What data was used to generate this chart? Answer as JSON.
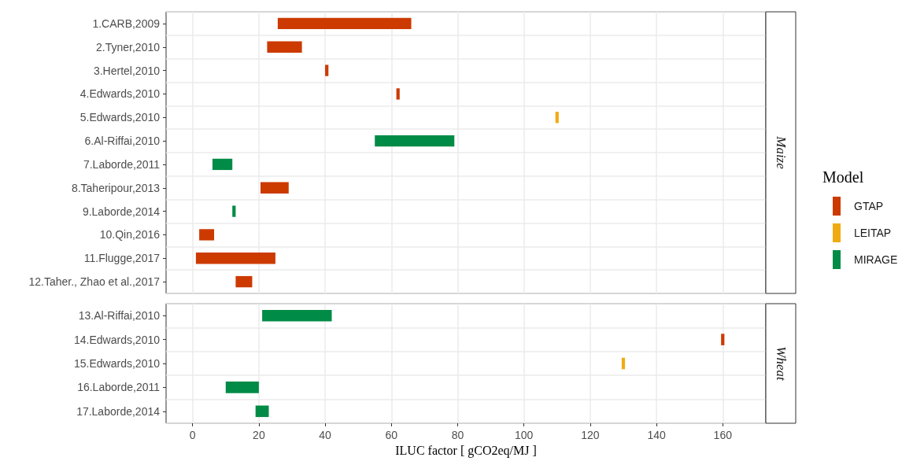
{
  "chart_data": [
    {
      "type": "bar",
      "orientation": "horizontal",
      "y2label": "Maize",
      "legend_title": "Model",
      "legend": "right",
      "grid": true,
      "tick_labels": "y",
      "categories": [
        "1.CARB,2009",
        "2.Tyner,2010",
        "3.Hertel,2010",
        "4.Edwards,2010",
        "5.Edwards,2010",
        "6.Al-Riffai,2010",
        "7.Laborde,2011",
        "8.Taheripour,2013",
        "9.Laborde,2014",
        "10.Qin,2016",
        "11.Flugge,2017",
        "12.Taher., Zhao et al.,2017"
      ],
      "xlim": [
        -8,
        173
      ],
      "xticks": [
        0,
        20,
        40,
        60,
        80,
        100,
        120,
        140,
        160
      ],
      "series": [
        {
          "name": "GTAP",
          "color": "#cc3a00",
          "base": [
            25.7,
            22.5,
            40,
            61.5,
            null,
            null,
            null,
            20.5,
            null,
            2,
            1,
            13
          ],
          "values": [
            40.3,
            10.5,
            1,
            1,
            null,
            null,
            null,
            8.5,
            null,
            4.5,
            24,
            5
          ]
        },
        {
          "name": "LEITAP",
          "color": "#f0ab12",
          "base": [
            null,
            null,
            null,
            null,
            109.5,
            null,
            null,
            null,
            null,
            null,
            null,
            null
          ],
          "values": [
            null,
            null,
            null,
            null,
            1,
            null,
            null,
            null,
            null,
            null,
            null,
            null
          ]
        },
        {
          "name": "MIRAGE",
          "color": "#008b46",
          "base": [
            null,
            null,
            null,
            null,
            null,
            55,
            6,
            null,
            12,
            null,
            null,
            null
          ],
          "values": [
            null,
            null,
            null,
            null,
            null,
            24,
            6,
            null,
            1,
            null,
            null,
            null
          ]
        }
      ]
    },
    {
      "type": "bar",
      "orientation": "horizontal",
      "y2label": "Wheat",
      "xlabel": "ILUC factor [ gCO2eq/MJ ]",
      "grid": true,
      "categories": [
        "13.Al-Riffai,2010",
        "14.Edwards,2010",
        "15.Edwards,2010",
        "16.Laborde,2011",
        "17.Laborde,2014"
      ],
      "xlim": [
        -8,
        173
      ],
      "xticks": [
        0,
        20,
        40,
        60,
        80,
        100,
        120,
        140,
        160
      ],
      "series": [
        {
          "color": "#cc3a00",
          "base": [
            null,
            159.5,
            null,
            null,
            null
          ],
          "values": [
            null,
            1,
            null,
            null,
            null
          ]
        },
        {
          "color": "#f0ab12",
          "base": [
            null,
            null,
            129.5,
            null,
            null
          ],
          "values": [
            null,
            null,
            1,
            null,
            null
          ]
        },
        {
          "color": "#008b46",
          "base": [
            21,
            null,
            null,
            10,
            19
          ],
          "values": [
            21,
            null,
            null,
            10,
            4
          ]
        }
      ]
    }
  ]
}
